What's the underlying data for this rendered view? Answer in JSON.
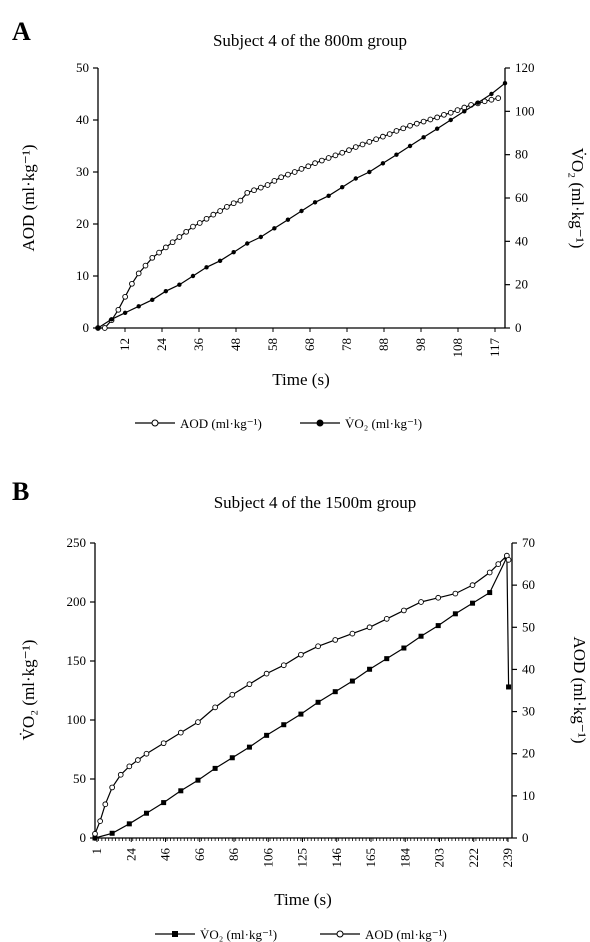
{
  "chart_data": [
    {
      "panel": "A",
      "type": "line",
      "title": "Subject 4 of the 800m group",
      "xlabel": "Time (s)",
      "ylabel_left": "AOD (ml·kg⁻¹)",
      "ylabel_right": "V̇O₂ (ml·kg⁻¹)",
      "x_ticks": [
        "12",
        "24",
        "36",
        "48",
        "58",
        "68",
        "78",
        "88",
        "98",
        "108",
        "117"
      ],
      "xlim": [
        0,
        120
      ],
      "ylim_left": [
        0,
        50
      ],
      "ylim_right": [
        0,
        120
      ],
      "y_ticks_left": [
        0,
        10,
        20,
        30,
        40,
        50
      ],
      "y_ticks_right": [
        0,
        20,
        40,
        60,
        80,
        100,
        120
      ],
      "legend": [
        "AOD (ml·kg⁻¹)",
        "V̇O₂ (ml·kg⁻¹)"
      ],
      "legend_position": "bottom",
      "series": [
        {
          "name": "AOD (ml·kg⁻¹)",
          "axis": "left",
          "marker": "open-circle",
          "x": [
            0,
            2,
            4,
            6,
            8,
            10,
            12,
            14,
            16,
            18,
            20,
            22,
            24,
            26,
            28,
            30,
            32,
            34,
            36,
            38,
            40,
            42,
            44,
            46,
            48,
            50,
            52,
            54,
            56,
            58,
            60,
            62,
            64,
            66,
            68,
            70,
            72,
            74,
            76,
            78,
            80,
            82,
            84,
            86,
            88,
            90,
            92,
            94,
            96,
            98,
            100,
            102,
            104,
            106,
            108,
            110,
            112,
            114,
            116,
            118
          ],
          "y": [
            0,
            0,
            1.5,
            3.5,
            6,
            8.5,
            10.5,
            12,
            13.5,
            14.5,
            15.5,
            16.5,
            17.5,
            18.5,
            19.5,
            20.2,
            21,
            21.8,
            22.5,
            23.3,
            24,
            24.5,
            26,
            26.5,
            27,
            27.5,
            28.3,
            29,
            29.5,
            30,
            30.6,
            31.1,
            31.7,
            32.2,
            32.7,
            33.2,
            33.7,
            34.2,
            34.8,
            35.3,
            35.8,
            36.3,
            36.8,
            37.3,
            37.9,
            38.4,
            38.9,
            39.3,
            39.7,
            40.1,
            40.5,
            41,
            41.4,
            41.9,
            42.4,
            42.9,
            43.2,
            43.6,
            43.9,
            44.2
          ]
        },
        {
          "name": "V̇O₂ (ml·kg⁻¹)",
          "axis": "right",
          "marker": "filled-circle",
          "x": [
            0,
            4,
            8,
            12,
            16,
            20,
            24,
            28,
            32,
            36,
            40,
            44,
            48,
            52,
            56,
            60,
            64,
            68,
            72,
            76,
            80,
            84,
            88,
            92,
            96,
            100,
            104,
            108,
            112,
            116,
            120
          ],
          "y": [
            0,
            4,
            7,
            10,
            13,
            17,
            20,
            24,
            28,
            31,
            35,
            39,
            42,
            46,
            50,
            54,
            58,
            61,
            65,
            69,
            72,
            76,
            80,
            84,
            88,
            92,
            96,
            100,
            104,
            108,
            113
          ]
        }
      ]
    },
    {
      "panel": "B",
      "type": "line",
      "title": "Subject 4 of the 1500m group",
      "xlabel": "Time (s)",
      "ylabel_left": "V̇O₂ (ml·kg⁻¹)",
      "ylabel_right": "AOD (ml·kg⁻¹)",
      "x_ticks": [
        "1",
        "24",
        "46",
        "66",
        "86",
        "106",
        "125",
        "146",
        "165",
        "184",
        "203",
        "222",
        "239"
      ],
      "xlim": [
        0,
        243
      ],
      "ylim_left": [
        0,
        250
      ],
      "ylim_right": [
        0,
        70
      ],
      "y_ticks_left": [
        0,
        50,
        100,
        150,
        200,
        250
      ],
      "y_ticks_right": [
        0,
        10,
        20,
        30,
        40,
        50,
        60,
        70
      ],
      "legend": [
        "V̇O₂ (ml·kg⁻¹)",
        "AOD (ml·kg⁻¹)"
      ],
      "legend_position": "bottom",
      "series": [
        {
          "name": "V̇O₂ (ml·kg⁻¹)",
          "axis": "left",
          "marker": "filled-square",
          "x": [
            0,
            10,
            20,
            30,
            40,
            50,
            60,
            70,
            80,
            90,
            100,
            110,
            120,
            130,
            140,
            150,
            160,
            170,
            180,
            190,
            200,
            210,
            220,
            230,
            240,
            241
          ],
          "y": [
            0,
            4,
            12,
            21,
            30,
            40,
            49,
            59,
            68,
            77,
            87,
            96,
            105,
            115,
            124,
            133,
            143,
            152,
            161,
            171,
            180,
            190,
            199,
            208,
            238,
            128
          ]
        },
        {
          "name": "AOD (ml·kg⁻¹)",
          "axis": "right",
          "marker": "open-circle",
          "x": [
            0,
            3,
            6,
            10,
            15,
            20,
            25,
            30,
            40,
            50,
            60,
            70,
            80,
            90,
            100,
            110,
            120,
            130,
            140,
            150,
            160,
            170,
            180,
            190,
            200,
            210,
            220,
            230,
            235,
            240,
            241
          ],
          "y": [
            1,
            4,
            8,
            12,
            15,
            17,
            18.5,
            20,
            22.5,
            25,
            27.5,
            31,
            34,
            36.5,
            39,
            41,
            43.5,
            45.5,
            47,
            48.5,
            50,
            52,
            54,
            56,
            57,
            58,
            60,
            63,
            65,
            67,
            66
          ]
        }
      ]
    }
  ]
}
